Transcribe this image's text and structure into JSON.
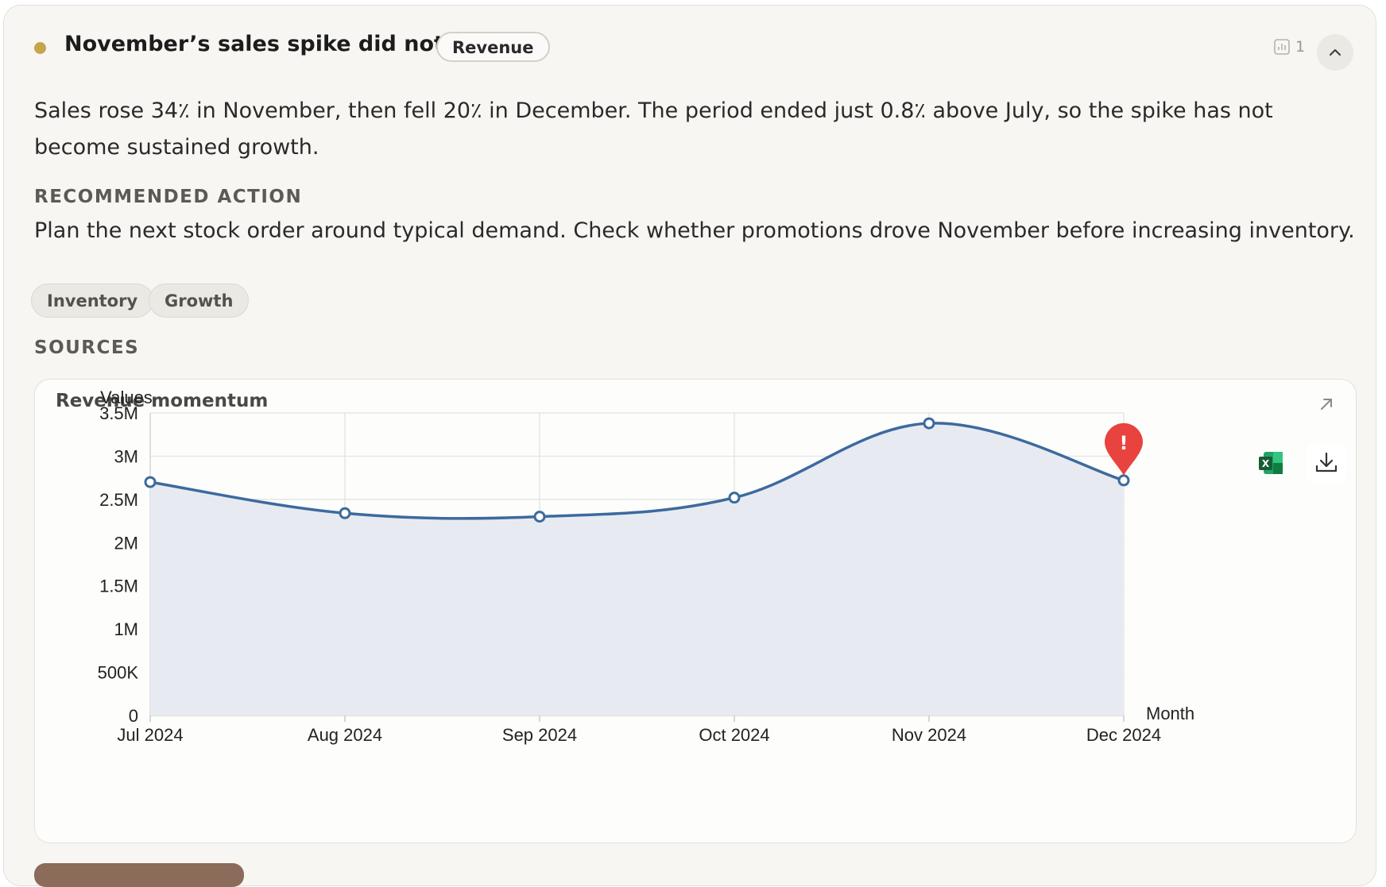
{
  "insight": {
    "title": "November’s sales spike did not last",
    "badge": "Revenue",
    "source_count": "1",
    "summary": "Sales rose 34٪ in November, then fell 20٪ in December. The period ended just 0.8٪ above July, so the spike has not become sustained growth.",
    "recommended_label": "RECOMMENDED ACTION",
    "recommended_text": "Plan the next stock order around typical demand. Check whether promotions drove November before increasing inventory.",
    "tags": [
      "Inventory",
      "Growth"
    ],
    "sources_label": "SOURCES",
    "status_color": "#c8a44a"
  },
  "icons": {
    "collapse": "chevron-up-icon",
    "count": "bar-chart-icon",
    "expand": "arrow-up-right-icon",
    "excel": "excel-icon",
    "download": "download-icon",
    "alert": "alert-pin-icon"
  },
  "chart_data": {
    "type": "area",
    "title": "Revenue momentum",
    "xlabel": "Month",
    "ylabel": "Values",
    "categories": [
      "Jul 2024",
      "Aug 2024",
      "Sep 2024",
      "Oct 2024",
      "Nov 2024",
      "Dec 2024"
    ],
    "series": [
      {
        "values": [
          2700000,
          2340000,
          2300000,
          2520000,
          3380000,
          2720000
        ]
      }
    ],
    "ylim": [
      0,
      3500000
    ],
    "yticks": [
      0,
      500000,
      1000000,
      1500000,
      2000000,
      2500000,
      3000000,
      3500000
    ],
    "ytick_labels": [
      "0",
      "500K",
      "1M",
      "1.5M",
      "2M",
      "2.5M",
      "3M",
      "3.5M"
    ],
    "alert_at": "Dec 2024",
    "alert_symbol": "!",
    "grid": true,
    "line_color": "#3d6a9e",
    "fill_color": "#e6eaf0",
    "alert_color": "#e8433f"
  }
}
